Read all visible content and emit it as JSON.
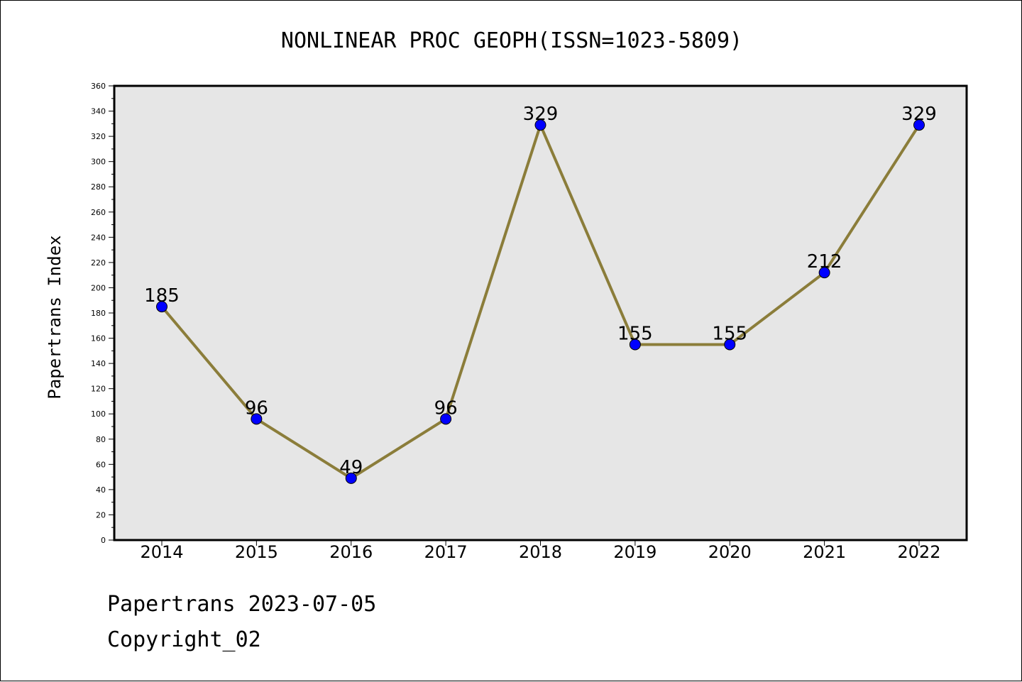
{
  "chart_data": {
    "type": "line",
    "title": "NONLINEAR PROC GEOPH(ISSN=1023-5809)",
    "xlabel": "",
    "ylabel": "Papertrans Index",
    "categories": [
      "2014",
      "2015",
      "2016",
      "2017",
      "2018",
      "2019",
      "2020",
      "2021",
      "2022"
    ],
    "values": [
      185,
      96,
      49,
      96,
      329,
      155,
      155,
      212,
      329
    ],
    "ylim": [
      0,
      360
    ],
    "yticks": [
      0,
      20,
      40,
      60,
      80,
      100,
      120,
      140,
      160,
      180,
      200,
      220,
      240,
      260,
      280,
      300,
      320,
      340,
      360
    ],
    "grid": false,
    "legend": "none",
    "data_labels": true,
    "colors": {
      "line": "#8b7d3a",
      "marker": "#0000ff",
      "plot_background": "#e6e6e6"
    }
  },
  "footer": {
    "line1": "Papertrans 2023-07-05",
    "line2": "Copyright_02"
  }
}
